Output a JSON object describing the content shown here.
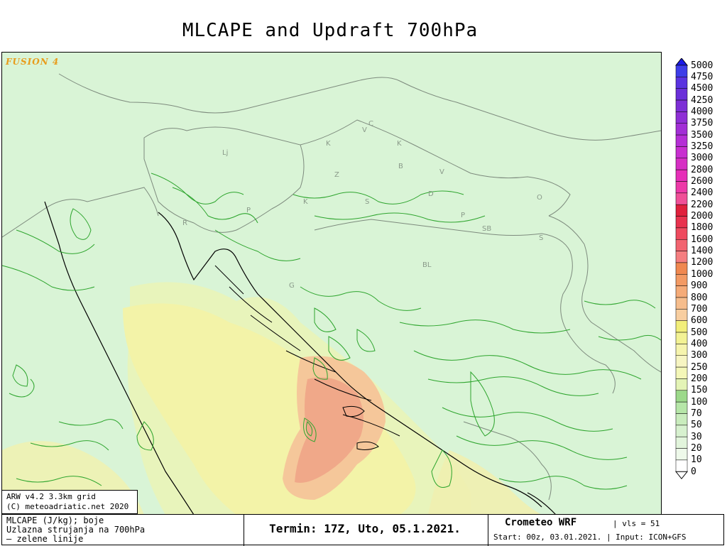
{
  "title": "MLCAPE and Updraft 700hPa",
  "logo_text": "FUSION 4",
  "credit": {
    "line1": "ARW v4.2 3.3km grid",
    "line2": "(C) meteoadriatic.net 2020"
  },
  "footer": {
    "legend_line1": "MLCAPE (J/kg); boje",
    "legend_line2": "Uzlazna strujanja na 700hPa",
    "legend_line3": "— zelene linije",
    "termin": "Termin: 17Z, Uto, 05.1.2021.",
    "model": "Crometeo WRF",
    "vls": "| vls = 51",
    "run": "Start: 00z, 03.01.2021. | Input: ICON+GFS"
  },
  "map_labels": [
    "Lj",
    "K",
    "K",
    "V",
    "C",
    "Z",
    "B",
    "V",
    "K",
    "S",
    "D",
    "P",
    "O",
    "SB",
    "BL",
    "R",
    "P",
    "G",
    "S"
  ],
  "colors": {
    "background_green": "#d9f4d6",
    "cape_yellow": "#f3f2a6",
    "cape_pale": "#e9f4b8",
    "cape_orange": "#f5c79a",
    "cape_salmon": "#f0a889",
    "contour_green": "#2ea52e",
    "border_gray": "#7d8a7d",
    "coast_black": "#000000"
  },
  "colorbar": {
    "levels": [
      "5000",
      "4750",
      "4500",
      "4250",
      "4000",
      "3750",
      "3500",
      "3250",
      "3000",
      "2800",
      "2600",
      "2400",
      "2200",
      "2000",
      "1800",
      "1600",
      "1400",
      "1200",
      "1000",
      "900",
      "800",
      "700",
      "600",
      "500",
      "400",
      "300",
      "250",
      "200",
      "150",
      "100",
      "70",
      "50",
      "30",
      "20",
      "10",
      "0"
    ],
    "colors": [
      "#1a1ae6",
      "#3d3de8",
      "#5a33e0",
      "#6a2fd9",
      "#7d2fd6",
      "#8f2fd6",
      "#a22fd6",
      "#b52fd6",
      "#c82fd0",
      "#d62fc4",
      "#e62fb8",
      "#ed3aa8",
      "#f05098",
      "#e0203c",
      "#e8324e",
      "#ee4a5e",
      "#f26470",
      "#f57e80",
      "#f08850",
      "#f39a64",
      "#f5ab78",
      "#f6bd8c",
      "#f8cea0",
      "#f2ee7a",
      "#f3f294",
      "#f6f4ad",
      "#f7f5c2",
      "#f4f7b8",
      "#e4f4b6",
      "#9cd98a",
      "#b6e6a8",
      "#c9ecbd",
      "#d7f1cf",
      "#e2f5dc",
      "#eef9ea",
      "#ffffff"
    ]
  }
}
